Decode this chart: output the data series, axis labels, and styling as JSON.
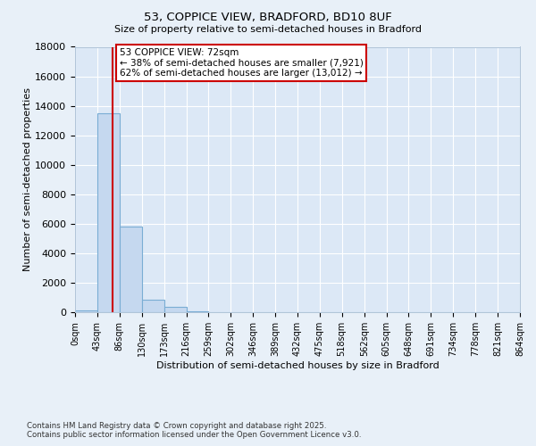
{
  "title_line1": "53, COPPICE VIEW, BRADFORD, BD10 8UF",
  "title_line2": "Size of property relative to semi-detached houses in Bradford",
  "xlabel": "Distribution of semi-detached houses by size in Bradford",
  "ylabel": "Number of semi-detached properties",
  "footer_line1": "Contains HM Land Registry data © Crown copyright and database right 2025.",
  "footer_line2": "Contains public sector information licensed under the Open Government Licence v3.0.",
  "annotation_line1": "53 COPPICE VIEW: 72sqm",
  "annotation_line2": "← 38% of semi-detached houses are smaller (7,921)",
  "annotation_line3": "62% of semi-detached houses are larger (13,012) →",
  "property_size": 72,
  "bin_edges": [
    0,
    43,
    86,
    130,
    173,
    216,
    259,
    302,
    346,
    389,
    432,
    475,
    518,
    562,
    605,
    648,
    691,
    734,
    778,
    821,
    864
  ],
  "bar_heights": [
    150,
    13500,
    5800,
    850,
    350,
    80,
    10,
    0,
    0,
    0,
    0,
    0,
    0,
    0,
    0,
    0,
    0,
    0,
    0,
    0
  ],
  "bar_color": "#c5d8ef",
  "bar_edge_color": "#7aadd4",
  "vline_color": "#cc0000",
  "background_color": "#e8f0f8",
  "plot_background_color": "#dce8f6",
  "ylim": [
    0,
    18000
  ],
  "yticks": [
    0,
    2000,
    4000,
    6000,
    8000,
    10000,
    12000,
    14000,
    16000,
    18000
  ],
  "grid_color": "#ffffff",
  "annotation_box_color": "#cc0000",
  "annotation_bg": "#ffffff"
}
